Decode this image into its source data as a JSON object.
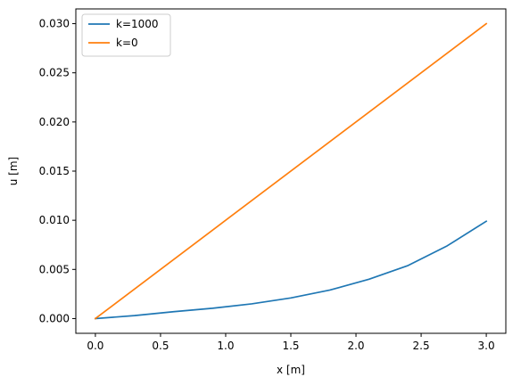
{
  "chart_data": {
    "type": "line",
    "title": "",
    "xlabel": "x [m]",
    "ylabel": "u [m]",
    "xlim": [
      -0.15,
      3.15
    ],
    "ylim": [
      -0.0015,
      0.0315
    ],
    "xticks": [
      0.0,
      0.5,
      1.0,
      1.5,
      2.0,
      2.5,
      3.0
    ],
    "xtick_labels": [
      "0.0",
      "0.5",
      "1.0",
      "1.5",
      "2.0",
      "2.5",
      "3.0"
    ],
    "yticks": [
      0.0,
      0.005,
      0.01,
      0.015,
      0.02,
      0.025,
      0.03
    ],
    "ytick_labels": [
      "0.000",
      "0.005",
      "0.010",
      "0.015",
      "0.020",
      "0.025",
      "0.030"
    ],
    "grid": false,
    "legend_position": "top-left",
    "series": [
      {
        "name": "k=1000",
        "color": "#1f77b4",
        "x": [
          0.0,
          0.3,
          0.6,
          0.9,
          1.2,
          1.5,
          1.8,
          2.1,
          2.4,
          2.7,
          3.0
        ],
        "y": [
          0.0,
          0.0003,
          0.0007,
          0.00105,
          0.0015,
          0.0021,
          0.0029,
          0.004,
          0.0054,
          0.0074,
          0.0099
        ]
      },
      {
        "name": "k=0",
        "color": "#ff7f0e",
        "x": [
          0.0,
          3.0
        ],
        "y": [
          0.0,
          0.03
        ]
      }
    ]
  }
}
